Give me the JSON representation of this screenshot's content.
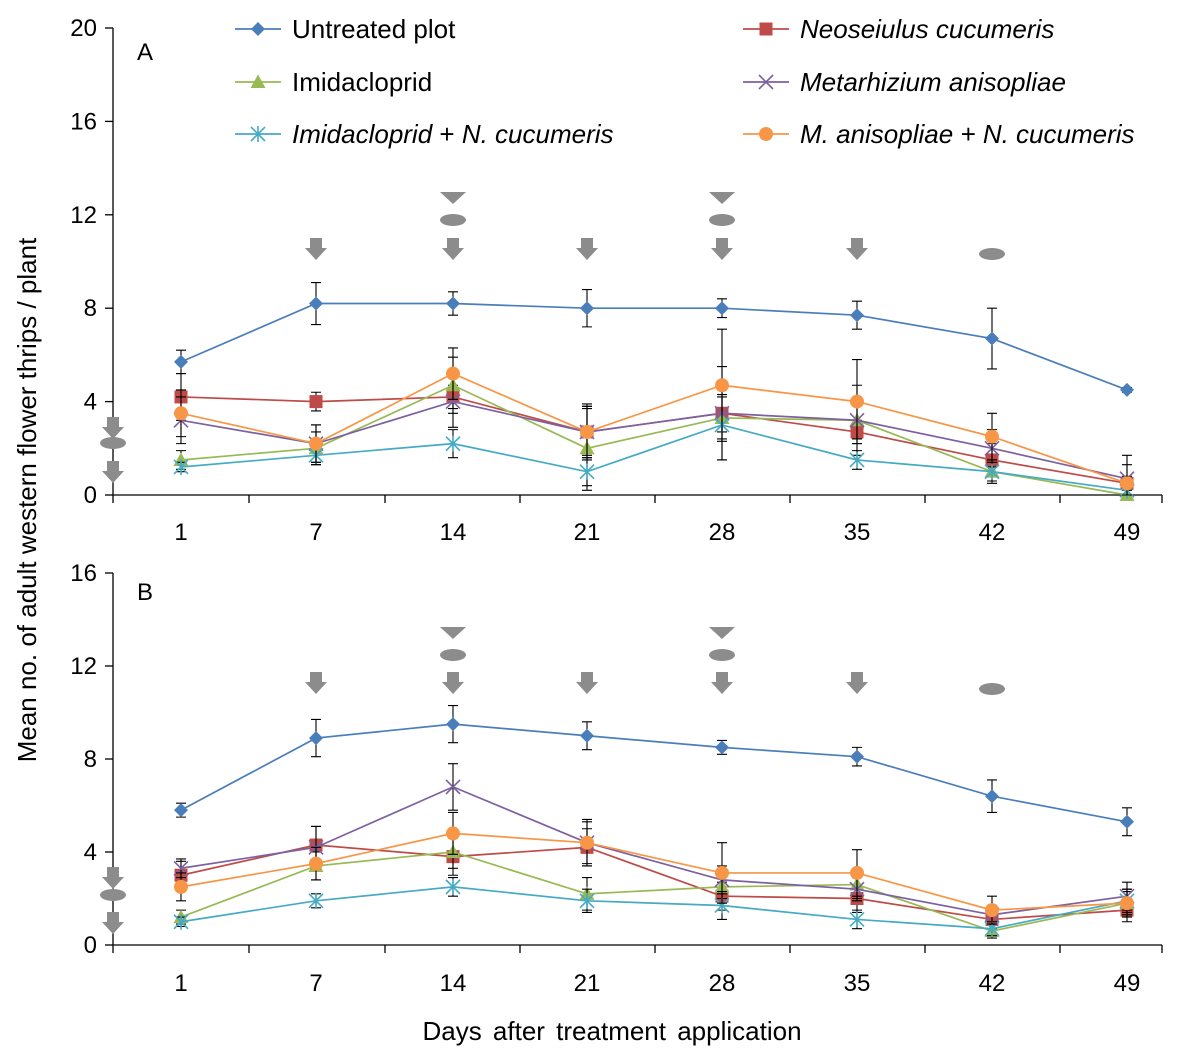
{
  "colors": {
    "Untreated plot": "#4a7ebb",
    "Neoseiulus cucumeris": "#be4b48",
    "Imidacloprid": "#98b954",
    "Metarhizium anisopliae": "#7d60a0",
    "Imidacloprid + N. cucumeris": "#46aac5",
    "M. anisopliae + N. cucumeris": "#f79646",
    "application_marker": "#8c8c8c"
  },
  "legend": [
    {
      "label": "Untreated plot",
      "italic": false,
      "marker": "diamond"
    },
    {
      "label": "Neoseiulus cucumeris",
      "italic": true,
      "marker": "square"
    },
    {
      "label": "Imidacloprid",
      "italic": false,
      "marker": "triangle"
    },
    {
      "label": "Metarhizium anisopliae",
      "italic": true,
      "marker": "x"
    },
    {
      "label": "Imidacloprid + N. cucumeris",
      "italic_parts": [
        "Imidacloprid",
        " + ",
        "N. cucumeris"
      ],
      "marker": "star"
    },
    {
      "label": "M. anisopliae + N. cucumeris",
      "italic": true,
      "marker": "circle"
    }
  ],
  "chart_data": [
    {
      "type": "line",
      "panel_label": "A",
      "xlabel": "Days after treatment application",
      "ylabel": "Mean no. of adult western flower thrips / plant",
      "categories": [
        "1",
        "7",
        "14",
        "21",
        "28",
        "35",
        "42",
        "49"
      ],
      "ylim": [
        0,
        20
      ],
      "yticks": [
        0,
        4,
        8,
        12,
        16,
        20
      ],
      "series": [
        {
          "name": "Untreated plot",
          "values": [
            5.7,
            8.2,
            8.2,
            8.0,
            8.0,
            7.7,
            6.7,
            4.5
          ],
          "errors": [
            0.5,
            0.9,
            0.5,
            0.8,
            0.4,
            0.6,
            1.3,
            0.1
          ]
        },
        {
          "name": "Neoseiulus cucumeris",
          "values": [
            4.2,
            4.0,
            4.2,
            2.7,
            3.5,
            2.7,
            1.5,
            0.5
          ],
          "errors": [
            1.0,
            0.4,
            0.5,
            1.0,
            0.8,
            0.5,
            0.7,
            0.3
          ]
        },
        {
          "name": "Imidacloprid",
          "values": [
            1.5,
            2.0,
            4.7,
            2.0,
            3.3,
            3.2,
            1.0,
            0.0
          ],
          "errors": [
            0.4,
            0.7,
            1.2,
            1.8,
            0.9,
            0.8,
            0.4,
            0.3
          ]
        },
        {
          "name": "Metarhizium anisopliae",
          "values": [
            3.2,
            2.2,
            4.0,
            2.7,
            3.5,
            3.2,
            2.0,
            0.7
          ],
          "errors": [
            1.0,
            0.8,
            1.1,
            1.2,
            2.0,
            1.5,
            0.8,
            1.0
          ]
        },
        {
          "name": "Imidacloprid + N. cucumeris",
          "values": [
            1.2,
            1.7,
            2.2,
            1.0,
            3.0,
            1.5,
            1.0,
            0.2
          ],
          "errors": [
            0.2,
            0.4,
            0.6,
            0.6,
            1.5,
            0.4,
            0.5,
            0.2
          ]
        },
        {
          "name": "M. anisopliae + N. cucumeris",
          "values": [
            3.5,
            2.2,
            5.2,
            2.7,
            4.7,
            4.0,
            2.5,
            0.5
          ],
          "errors": [
            1.0,
            0.8,
            1.1,
            1.1,
            2.4,
            1.8,
            1.0,
            0.8
          ]
        }
      ],
      "application_markers": [
        {
          "category": "1",
          "stack": [
            "arrow",
            "ellipse",
            "arrow"
          ],
          "position": "y-axis"
        },
        {
          "category": "7",
          "stack": [
            "arrow"
          ]
        },
        {
          "category": "14",
          "stack": [
            "chevron",
            "ellipse",
            "arrow"
          ]
        },
        {
          "category": "21",
          "stack": [
            "arrow"
          ]
        },
        {
          "category": "28",
          "stack": [
            "chevron",
            "ellipse",
            "arrow"
          ]
        },
        {
          "category": "35",
          "stack": [
            "arrow"
          ]
        },
        {
          "category": "42",
          "stack": [
            "ellipse"
          ]
        }
      ]
    },
    {
      "type": "line",
      "panel_label": "B",
      "xlabel": "Days after treatment application",
      "ylabel": "Mean no. of adult western flower thrips / plant",
      "categories": [
        "1",
        "7",
        "14",
        "21",
        "28",
        "35",
        "42",
        "49"
      ],
      "ylim": [
        0,
        16
      ],
      "yticks": [
        0,
        4,
        8,
        12,
        16
      ],
      "series": [
        {
          "name": "Untreated plot",
          "values": [
            5.8,
            8.9,
            9.5,
            9.0,
            8.5,
            8.1,
            6.4,
            5.3
          ],
          "errors": [
            0.3,
            0.8,
            0.8,
            0.6,
            0.3,
            0.4,
            0.7,
            0.6
          ]
        },
        {
          "name": "Neoseiulus cucumeris",
          "values": [
            3.0,
            4.3,
            3.8,
            4.2,
            2.1,
            2.0,
            1.1,
            1.5
          ],
          "errors": [
            0.6,
            0.8,
            0.8,
            0.8,
            0.6,
            0.6,
            0.4,
            0.5
          ]
        },
        {
          "name": "Imidacloprid",
          "values": [
            1.2,
            3.4,
            4.0,
            2.2,
            2.5,
            2.6,
            0.6,
            1.8
          ],
          "errors": [
            0.3,
            0.6,
            0.7,
            0.7,
            0.5,
            0.6,
            0.3,
            0.5
          ]
        },
        {
          "name": "Metarhizium anisopliae",
          "values": [
            3.3,
            4.2,
            6.8,
            4.4,
            2.8,
            2.4,
            1.3,
            2.1
          ],
          "errors": [
            0.4,
            0.9,
            1.0,
            1.0,
            0.6,
            0.5,
            0.4,
            0.6
          ]
        },
        {
          "name": "Imidacloprid + N. cucumeris",
          "values": [
            1.0,
            1.9,
            2.5,
            1.9,
            1.7,
            1.1,
            0.7,
            1.9
          ],
          "errors": [
            0.2,
            0.3,
            0.4,
            0.5,
            0.6,
            0.4,
            0.3,
            0.5
          ]
        },
        {
          "name": "M. anisopliae + N. cucumeris",
          "values": [
            2.5,
            3.5,
            4.8,
            4.4,
            3.1,
            3.1,
            1.5,
            1.8
          ],
          "errors": [
            0.6,
            0.7,
            0.9,
            0.9,
            1.3,
            1.0,
            0.6,
            0.6
          ]
        }
      ],
      "application_markers": [
        {
          "category": "1",
          "stack": [
            "arrow",
            "ellipse",
            "arrow"
          ],
          "position": "y-axis"
        },
        {
          "category": "7",
          "stack": [
            "arrow"
          ]
        },
        {
          "category": "14",
          "stack": [
            "chevron",
            "ellipse",
            "arrow"
          ]
        },
        {
          "category": "21",
          "stack": [
            "arrow"
          ]
        },
        {
          "category": "28",
          "stack": [
            "chevron",
            "ellipse",
            "arrow"
          ]
        },
        {
          "category": "35",
          "stack": [
            "arrow"
          ]
        },
        {
          "category": "42",
          "stack": [
            "ellipse"
          ]
        }
      ]
    }
  ]
}
